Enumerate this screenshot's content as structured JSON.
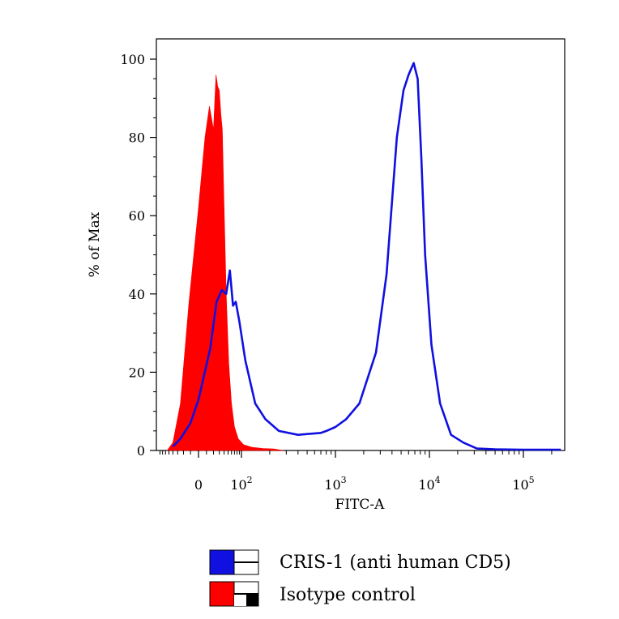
{
  "chart_data": {
    "type": "area",
    "title": "",
    "xlabel": "FITC-A",
    "ylabel": "% of Max",
    "x_scale": "biexponential",
    "ylim": [
      0,
      100
    ],
    "y_ticks": [
      "0",
      "20",
      "40",
      "60",
      "80",
      "100"
    ],
    "x_ticks": [
      {
        "base": "0",
        "exp": ""
      },
      {
        "base": "10",
        "exp": "2"
      },
      {
        "base": "10",
        "exp": "3"
      },
      {
        "base": "10",
        "exp": "4"
      },
      {
        "base": "10",
        "exp": "5"
      }
    ],
    "legend_position": "bottom-left",
    "series": [
      {
        "name": "CRIS-1 (anti human CD5)",
        "color": "#1010e0",
        "style": "line",
        "x": [
          -40,
          -25,
          -10,
          0,
          15,
          25,
          35,
          45,
          55,
          65,
          75,
          90,
          110,
          140,
          180,
          250,
          400,
          700,
          800,
          1000,
          1300,
          1800,
          2700,
          3500,
          4500,
          5300,
          6000,
          6800,
          7500,
          8200,
          9000,
          10500,
          13000,
          17000,
          23000,
          32000,
          50000,
          100000,
          250000
        ],
        "values": [
          1,
          3,
          7,
          13,
          26,
          38,
          41,
          40,
          46,
          37,
          38,
          33,
          23,
          12,
          8,
          5,
          4,
          4.5,
          5,
          6,
          8,
          12,
          25,
          45,
          80,
          92,
          96,
          99,
          95,
          75,
          50,
          27,
          12,
          4,
          2,
          0.5,
          0.3,
          0.2,
          0.2
        ]
      },
      {
        "name": "Isotype control",
        "color": "#ff0000",
        "style": "filled",
        "x": [
          -55,
          -40,
          -25,
          -12,
          0,
          8,
          14,
          20,
          24,
          27,
          30,
          33,
          36,
          40,
          45,
          52,
          60,
          70,
          85,
          105,
          130,
          170,
          220,
          280
        ],
        "values": [
          0,
          2,
          12,
          38,
          62,
          80,
          88,
          82,
          96,
          93,
          92,
          86,
          82,
          62,
          40,
          22,
          12,
          6,
          3,
          1.5,
          0.8,
          0.5,
          0.4,
          0
        ]
      }
    ]
  }
}
